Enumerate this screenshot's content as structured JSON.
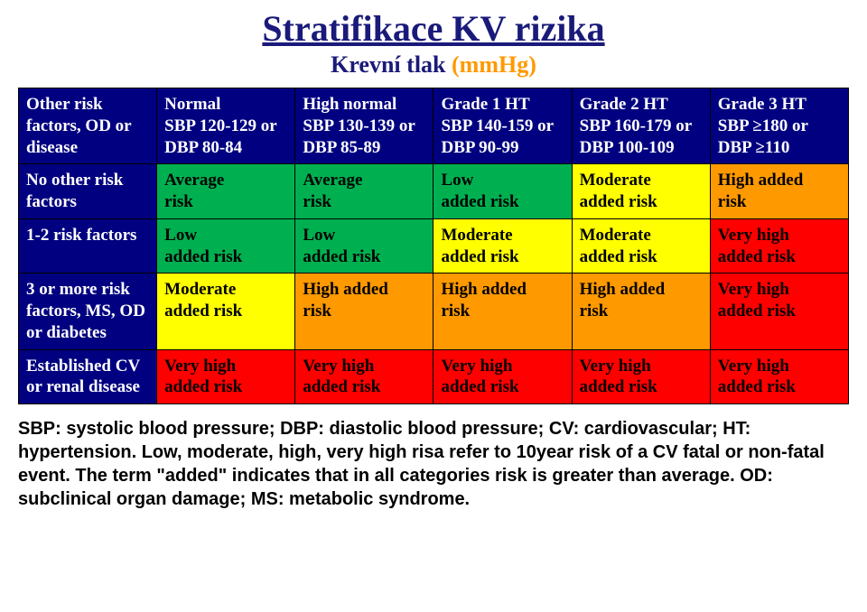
{
  "title": "Stratifikace KV rizika",
  "subtitle_part1": "Krevní tlak ",
  "subtitle_part2": "(mmHg)",
  "colors": {
    "header_bg": "#000080",
    "header_fg": "#ffffff",
    "green": "#00b050",
    "yellow": "#ffff00",
    "orange": "#ff9900",
    "red": "#ff0000",
    "title_color": "#1a1a7a"
  },
  "columns": [
    {
      "l1": "Other risk factors, OD or disease",
      "l2": ""
    },
    {
      "l1": "Normal",
      "l2": "SBP 120-129 or DBP 80-84"
    },
    {
      "l1": "High normal",
      "l2": "SBP 130-139 or DBP 85-89"
    },
    {
      "l1": "Grade 1 HT",
      "l2": "SBP 140-159 or DBP 90-99"
    },
    {
      "l1": "Grade 2 HT",
      "l2": "SBP 160-179 or DBP 100-109"
    },
    {
      "l1": "Grade 3 HT",
      "l2": "SBP ≥180 or DBP ≥110"
    }
  ],
  "rows": [
    {
      "head": "No other risk factors",
      "cells": [
        {
          "l1": "Average",
          "l2": "risk",
          "bg": "#00b050"
        },
        {
          "l1": "Average",
          "l2": "risk",
          "bg": "#00b050"
        },
        {
          "l1": "Low",
          "l2": "added risk",
          "bg": "#00b050"
        },
        {
          "l1": "Moderate",
          "l2": "added risk",
          "bg": "#ffff00"
        },
        {
          "l1": "High added",
          "l2": "risk",
          "bg": "#ff9900"
        }
      ]
    },
    {
      "head": "1-2 risk factors",
      "cells": [
        {
          "l1": "Low",
          "l2": "added risk",
          "bg": "#00b050"
        },
        {
          "l1": "Low",
          "l2": "added risk",
          "bg": "#00b050"
        },
        {
          "l1": "Moderate",
          "l2": "added risk",
          "bg": "#ffff00"
        },
        {
          "l1": "Moderate",
          "l2": "added risk",
          "bg": "#ffff00"
        },
        {
          "l1": "Very high",
          "l2": "added risk",
          "bg": "#ff0000"
        }
      ]
    },
    {
      "head": "3 or more risk factors, MS, OD or diabetes",
      "cells": [
        {
          "l1": "Moderate",
          "l2": "added risk",
          "bg": "#ffff00"
        },
        {
          "l1": "High added",
          "l2": "risk",
          "bg": "#ff9900"
        },
        {
          "l1": "High added",
          "l2": "risk",
          "bg": "#ff9900"
        },
        {
          "l1": "High added",
          "l2": "risk",
          "bg": "#ff9900"
        },
        {
          "l1": "Very high",
          "l2": "added risk",
          "bg": "#ff0000"
        }
      ]
    },
    {
      "head": "Established CV or renal disease",
      "cells": [
        {
          "l1": "Very high",
          "l2": "added risk",
          "bg": "#ff0000"
        },
        {
          "l1": "Very high",
          "l2": "added risk",
          "bg": "#ff0000"
        },
        {
          "l1": "Very high",
          "l2": "added risk",
          "bg": "#ff0000"
        },
        {
          "l1": "Very high",
          "l2": "added risk",
          "bg": "#ff0000"
        },
        {
          "l1": "Very high",
          "l2": "added risk",
          "bg": "#ff0000"
        }
      ]
    }
  ],
  "footnote": "SBP: systolic blood pressure; DBP: diastolic blood pressure; CV: cardiovascular; HT: hypertension. Low, moderate, high, very high risa refer to 10year risk of a CV fatal or non-fatal event. The term \"added\" indicates that in all categories risk is greater than average. OD: subclinical organ damage; MS: metabolic syndrome."
}
